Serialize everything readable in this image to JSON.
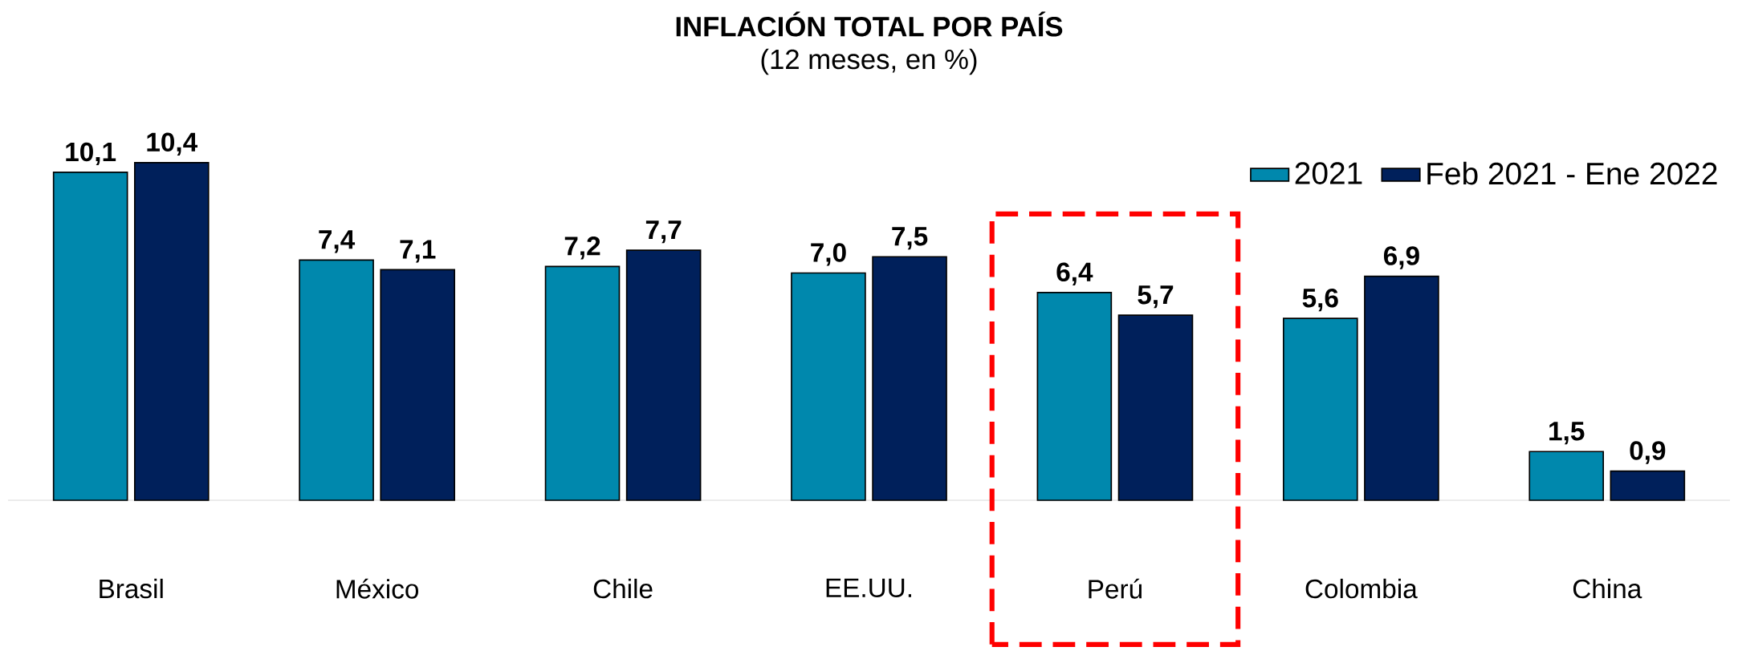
{
  "chart_data": {
    "type": "bar",
    "title": "INFLACIÓN TOTAL POR PAÍS",
    "subtitle": "(12 meses, en %)",
    "categories": [
      "Brasil",
      "México",
      "Chile",
      "EE.UU.",
      "Perú",
      "Colombia",
      "China"
    ],
    "series": [
      {
        "name": "2021",
        "color": "#0088ad",
        "values": [
          10.1,
          7.4,
          7.2,
          7.0,
          6.4,
          5.6,
          1.5
        ],
        "value_labels": [
          "10,1",
          "7,4",
          "7,2",
          "7,0",
          "6,4",
          "5,6",
          "1,5"
        ]
      },
      {
        "name": "Feb 2021 - Ene 2022",
        "color": "#00205b",
        "values": [
          10.4,
          7.1,
          7.7,
          7.5,
          5.7,
          6.9,
          0.9
        ],
        "value_labels": [
          "10,4",
          "7,1",
          "7,7",
          "7,5",
          "5,7",
          "6,9",
          "0,9"
        ]
      }
    ],
    "legend": "top right"
  }
}
